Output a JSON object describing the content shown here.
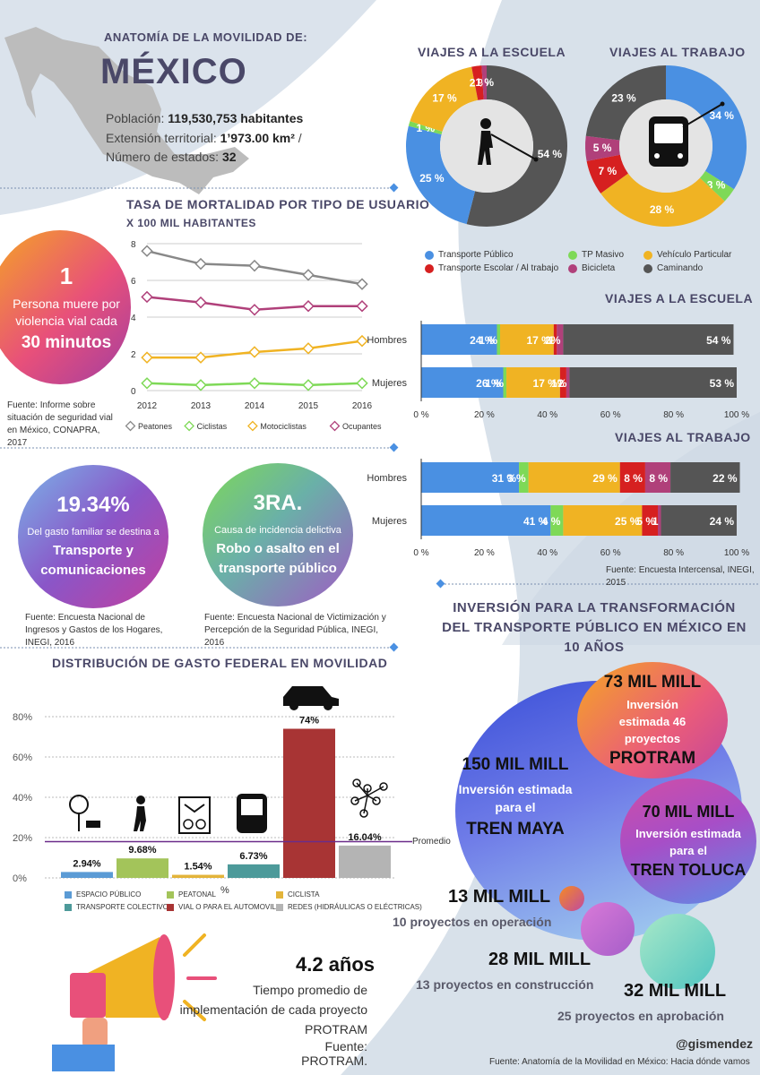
{
  "header": {
    "kicker": "ANATOMÍA DE LA MOVILIDAD DE:",
    "country": "MÉXICO",
    "pop_label": "Población:",
    "pop_value": "119,530,753 habitantes",
    "ext_label": "Extensión territorial:",
    "ext_value": "1’973.00 km²",
    "ext_sep": "/",
    "states_label": "Número de estados:",
    "states_value": "32"
  },
  "donuts": {
    "school_title": "VIAJES A LA ESCUELA",
    "work_title": "VIAJES AL TRABAJO",
    "legend": [
      {
        "label": "Transporte Público",
        "color": "#4a90e2"
      },
      {
        "label": "TP Masivo",
        "color": "#7ed957"
      },
      {
        "label": "Vehículo Particular",
        "color": "#f0b323"
      },
      {
        "label": "Transporte Escolar / Al trabajo",
        "color": "#d62020"
      },
      {
        "label": "Bicicleta",
        "color": "#b0407a"
      },
      {
        "label": "Caminando",
        "color": "#555555"
      }
    ]
  },
  "mortality": {
    "title": "TASA DE MORTALIDAD POR TIPO DE USUARIO",
    "subtitle": "X 100 MIL HABITANTES",
    "legend": [
      "Peatones",
      "Ciclistas",
      "Motociclistas",
      "Ocupantes"
    ]
  },
  "death_circle": {
    "number": "1",
    "text": "Persona muere por violencia vial cada",
    "highlight": "30 minutos",
    "source": "Fuente: Informe sobre situación de seguridad vial en México, CONAPRA, 2017"
  },
  "school_bars": {
    "title": "VIAJES A LA ESCUELA"
  },
  "work_bars": {
    "title": "VIAJES AL TRABAJO",
    "source": "Fuente: Encuesta Intercensal, INEGI, 2015"
  },
  "spend_circle": {
    "value": "19.34%",
    "text": "Del gasto familiar  se destina a",
    "highlight": "Transporte y comunicaciones",
    "source": "Fuente: Encuesta Nacional de Ingresos y Gastos de los Hogares, INEGI, 2016"
  },
  "crime_circle": {
    "value": "3RA.",
    "text": "Causa de incidencia delictiva",
    "highlight": "Robo o asalto en el transporte público",
    "source": "Fuente: Encuesta Nacional de Victimización y Percepción de la Seguridad Pública, INEGI, 2016"
  },
  "federal": {
    "title": "DISTRIBUCIÓN DE GASTO FEDERAL EN MOVILIDAD",
    "promedio": "Promedio",
    "pct_axis": "%",
    "legend": [
      {
        "label": "ESPACIO PÚBLICO",
        "color": "#5b9bd5"
      },
      {
        "label": "PEATONAL",
        "color": "#a3c45a"
      },
      {
        "label": "CICLISTA",
        "color": "#e3b43a"
      },
      {
        "label": "TRANSPORTE COLECTIVO",
        "color": "#4d9a9a"
      },
      {
        "label": "VIAL O PARA EL AUTOMOVIL",
        "color": "#a83434"
      },
      {
        "label": "REDES (HIDRÁULICAS O ELÉCTRICAS)",
        "color": "#b4b4b4"
      }
    ]
  },
  "investment": {
    "title": "INVERSIÓN PARA LA TRANSFORMACIÓN DEL TRANSPORTE PÚBLICO EN MÉXICO EN 10 AÑOS",
    "protram_amount": "73 MIL MILL",
    "protram_text": "Inversión estimada 46 proyectos",
    "protram_name": "PROTRAM",
    "maya_amount": "150 MIL MILL",
    "maya_text": "Inversión estimada para el",
    "maya_name": "TREN MAYA",
    "toluca_amount": "70 MIL MILL",
    "toluca_text": "Inversión estimada para el",
    "toluca_name": "TREN TOLUCA",
    "op_amount": "13 MIL MILL",
    "op_text": "10 proyectos en operación",
    "cons_amount": "28 MIL MILL",
    "cons_text": "13 proyectos en construcción",
    "apr_amount": "32 MIL MILL",
    "apr_text": "25 proyectos en aprobación"
  },
  "protram_time": {
    "value": "4.2 años",
    "text": "Tiempo promedio de implementación de cada proyecto PROTRAM",
    "source": "Fuente: PROTRAM."
  },
  "footer": {
    "handle": "@gismendez",
    "source": "Fuente: Anatomía de la Movilidad en México: Hacia dónde vamos"
  },
  "chart_data": [
    {
      "type": "pie",
      "title": "VIAJES A LA ESCUELA",
      "labels": [
        "Caminando",
        "Transporte Público",
        "TP Masivo",
        "Vehículo Particular",
        "Transporte Escolar / Al trabajo",
        "Bicicleta"
      ],
      "values": [
        54,
        25,
        1,
        17,
        2,
        1
      ],
      "colors": [
        "#555555",
        "#4a90e2",
        "#7ed957",
        "#f0b323",
        "#d62020",
        "#b0407a"
      ]
    },
    {
      "type": "pie",
      "title": "VIAJES AL TRABAJO",
      "labels": [
        "Transporte Público",
        "TP Masivo",
        "Vehículo Particular",
        "Transporte Escolar / Al trabajo",
        "Bicicleta",
        "Caminando"
      ],
      "values": [
        34,
        3,
        28,
        7,
        5,
        23
      ],
      "colors": [
        "#4a90e2",
        "#7ed957",
        "#f0b323",
        "#d62020",
        "#b0407a",
        "#555555"
      ]
    },
    {
      "type": "line",
      "title": "TASA DE MORTALIDAD POR TIPO DE USUARIO",
      "subtitle": "X 100 MIL HABITANTES",
      "x": [
        2012,
        2013,
        2014,
        2015,
        2016
      ],
      "ylim": [
        0,
        8
      ],
      "yticks": [
        0,
        2,
        4,
        6,
        8
      ],
      "series": [
        {
          "name": "Peatones",
          "values": [
            7.6,
            6.9,
            6.8,
            6.3,
            5.8
          ],
          "color": "#888888"
        },
        {
          "name": "Ciclistas",
          "values": [
            0.4,
            0.3,
            0.4,
            0.3,
            0.4
          ],
          "color": "#7ed957"
        },
        {
          "name": "Motociclistas",
          "values": [
            1.8,
            1.8,
            2.1,
            2.3,
            2.7
          ],
          "color": "#f0b323"
        },
        {
          "name": "Ocupantes",
          "values": [
            5.1,
            4.8,
            4.4,
            4.6,
            4.6
          ],
          "color": "#b0407a"
        }
      ]
    },
    {
      "type": "bar",
      "title": "VIAJES A LA ESCUELA",
      "orientation": "horizontal",
      "stacked": true,
      "categories": [
        "Hombres",
        "Mujeres"
      ],
      "xticks": [
        "0 %",
        "20 %",
        "40 %",
        "60 %",
        "80 %",
        "100 %"
      ],
      "series": [
        {
          "name": "Transporte Público",
          "values": [
            24,
            26
          ],
          "labels": [
            "24 %",
            "26 %"
          ],
          "color": "#4a90e2"
        },
        {
          "name": "TP Masivo",
          "values": [
            1,
            1
          ],
          "labels": [
            "1 %",
            "1 %"
          ],
          "color": "#7ed957"
        },
        {
          "name": "Vehículo Particular",
          "values": [
            17,
            17
          ],
          "labels": [
            "17 %",
            "17 %"
          ],
          "color": "#f0b323"
        },
        {
          "name": "Transporte Escolar / Al trabajo",
          "values": [
            1,
            2
          ],
          "labels": [
            "1",
            "2"
          ],
          "color": "#d62020"
        },
        {
          "name": "Bicicleta",
          "values": [
            2,
            1
          ],
          "labels": [
            "2%",
            "1%"
          ],
          "color": "#b0407a"
        },
        {
          "name": "Caminando",
          "values": [
            54,
            53
          ],
          "labels": [
            "54 %",
            "53 %"
          ],
          "color": "#555555"
        }
      ]
    },
    {
      "type": "bar",
      "title": "VIAJES AL TRABAJO",
      "orientation": "horizontal",
      "stacked": true,
      "categories": [
        "Hombres",
        "Mujeres"
      ],
      "xticks": [
        "0 %",
        "20 %",
        "40 %",
        "60 %",
        "80 %",
        "100 %"
      ],
      "series": [
        {
          "name": "Transporte Público",
          "values": [
            31,
            41
          ],
          "labels": [
            "31 %",
            "41 %"
          ],
          "color": "#4a90e2"
        },
        {
          "name": "TP Masivo",
          "values": [
            3,
            4
          ],
          "labels": [
            "3 %",
            "4 %"
          ],
          "color": "#7ed957"
        },
        {
          "name": "Vehículo Particular",
          "values": [
            29,
            25
          ],
          "labels": [
            "29 %",
            "25 %"
          ],
          "color": "#f0b323"
        },
        {
          "name": "Transporte Escolar / Al trabajo",
          "values": [
            8,
            5
          ],
          "labels": [
            "8 %",
            "5 %"
          ],
          "color": "#d62020"
        },
        {
          "name": "Bicicleta",
          "values": [
            8,
            1
          ],
          "labels": [
            "8 %",
            "1"
          ],
          "color": "#b0407a"
        },
        {
          "name": "Caminando",
          "values": [
            22,
            24
          ],
          "labels": [
            "22 %",
            "24 %"
          ],
          "color": "#555555"
        }
      ]
    },
    {
      "type": "bar",
      "title": "DISTRIBUCIÓN DE GASTO FEDERAL EN MOVILIDAD",
      "categories": [
        "ESPACIO PÚBLICO",
        "PEATONAL",
        "CICLISTA",
        "TRANSPORTE COLECTIVO",
        "VIAL O PARA EL AUTOMOVIL",
        "REDES (HIDRÁULICAS O ELÉCTRICAS)"
      ],
      "values": [
        2.94,
        9.68,
        1.54,
        6.73,
        74,
        16.04
      ],
      "labels": [
        "2.94%",
        "9.68%",
        "1.54%",
        "6.73%",
        "74%",
        "16.04%"
      ],
      "colors": [
        "#5b9bd5",
        "#a3c45a",
        "#e3b43a",
        "#4d9a9a",
        "#a83434",
        "#b4b4b4"
      ],
      "ylim": [
        0,
        80
      ],
      "yticks": [
        "0%",
        "20%",
        "40%",
        "60%",
        "80%"
      ],
      "average": 18
    }
  ]
}
